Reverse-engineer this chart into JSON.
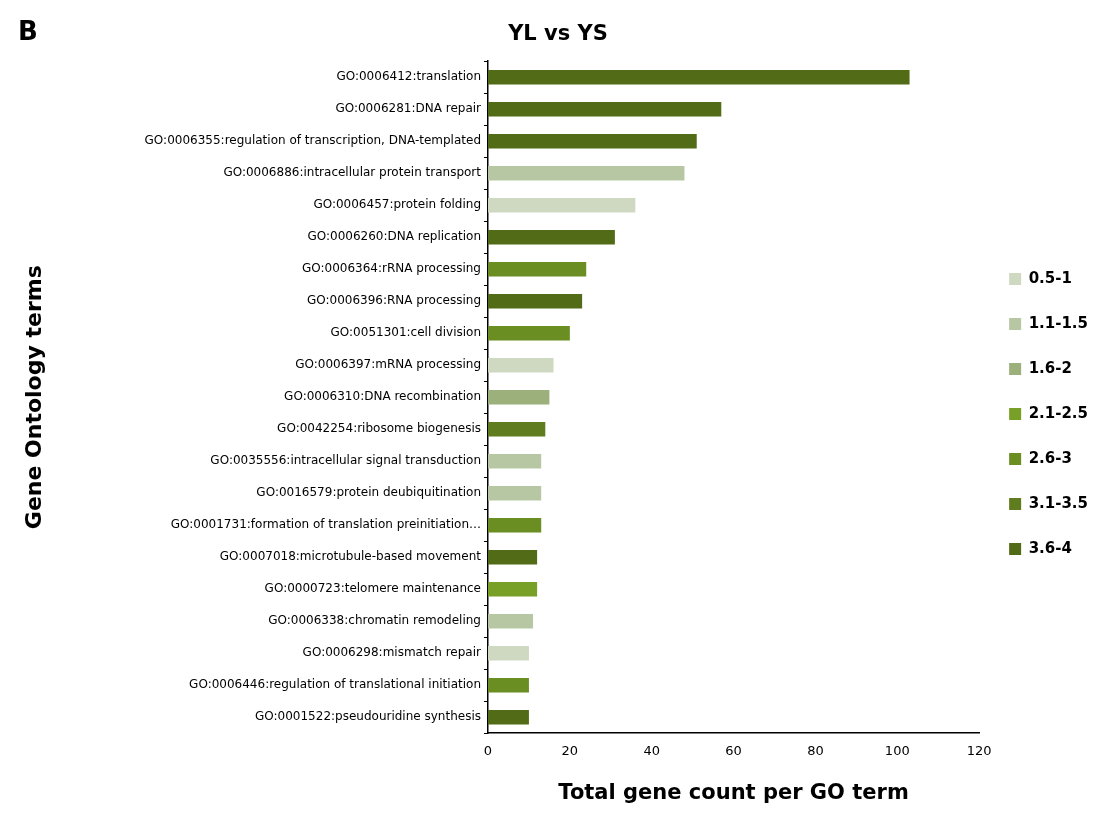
{
  "chart_data": {
    "type": "bar",
    "orientation": "horizontal",
    "title": "YL vs YS",
    "xlabel": "Total gene count per GO term",
    "ylabel": "Gene Ontology terms",
    "annotations": [
      "B"
    ],
    "categories": [
      "GO:0006412:translation",
      "GO:0006281:DNA repair",
      "GO:0006355:regulation of transcription, DNA-templated",
      "GO:0006886:intracellular protein transport",
      "GO:0006457:protein folding",
      "GO:0006260:DNA replication",
      "GO:0006364:rRNA processing",
      "GO:0006396:RNA processing",
      "GO:0051301:cell division",
      "GO:0006397:mRNA processing",
      "GO:0006310:DNA recombination",
      "GO:0042254:ribosome biogenesis",
      "GO:0035556:intracellular signal transduction",
      "GO:0016579:protein deubiquitination",
      "GO:0001731:formation of translation preinitiation…",
      "GO:0007018:microtubule-based movement",
      "GO:0000723:telomere maintenance",
      "GO:0006338:chromatin remodeling",
      "GO:0006298:mismatch repair",
      "GO:0006446:regulation of translational initiation",
      "GO:0001522:pseudouridine synthesis"
    ],
    "series": [
      {
        "name": "0.5-1",
        "color": "#cfd9c2",
        "values": [
          null,
          null,
          null,
          null,
          36,
          null,
          null,
          null,
          null,
          16,
          null,
          null,
          null,
          null,
          null,
          null,
          null,
          null,
          10,
          null,
          null
        ]
      },
      {
        "name": "1.1-1.5",
        "color": "#b7c7a3",
        "values": [
          null,
          null,
          null,
          48,
          null,
          null,
          null,
          null,
          null,
          null,
          null,
          null,
          13,
          13,
          null,
          null,
          null,
          11,
          null,
          null,
          null
        ]
      },
      {
        "name": "1.6-2",
        "color": "#9bb07a",
        "values": [
          null,
          null,
          null,
          null,
          null,
          null,
          null,
          null,
          null,
          null,
          15,
          null,
          null,
          null,
          null,
          null,
          null,
          null,
          null,
          null,
          null
        ]
      },
      {
        "name": "2.1-2.5",
        "color": "#78a027",
        "values": [
          null,
          null,
          null,
          null,
          null,
          null,
          null,
          null,
          null,
          null,
          null,
          null,
          null,
          null,
          null,
          null,
          12,
          null,
          null,
          null,
          null
        ]
      },
      {
        "name": "2.6-3",
        "color": "#6b8e23",
        "values": [
          null,
          null,
          null,
          null,
          null,
          null,
          24,
          null,
          20,
          null,
          null,
          null,
          null,
          null,
          13,
          null,
          null,
          null,
          null,
          10,
          null
        ]
      },
      {
        "name": "3.1-3.5",
        "color": "#5f7d1e",
        "values": [
          null,
          null,
          null,
          null,
          null,
          null,
          null,
          null,
          null,
          null,
          null,
          14,
          null,
          null,
          null,
          null,
          null,
          null,
          null,
          null,
          null
        ]
      },
      {
        "name": "3.6-4",
        "color": "#526b17",
        "values": [
          103,
          57,
          51,
          null,
          null,
          31,
          null,
          23,
          null,
          null,
          null,
          null,
          null,
          null,
          null,
          12,
          null,
          null,
          null,
          null,
          10
        ]
      }
    ],
    "xlim": [
      0,
      120
    ],
    "xticks": [
      0,
      20,
      40,
      60,
      80,
      100,
      120
    ],
    "grid": false,
    "legend": "right"
  }
}
